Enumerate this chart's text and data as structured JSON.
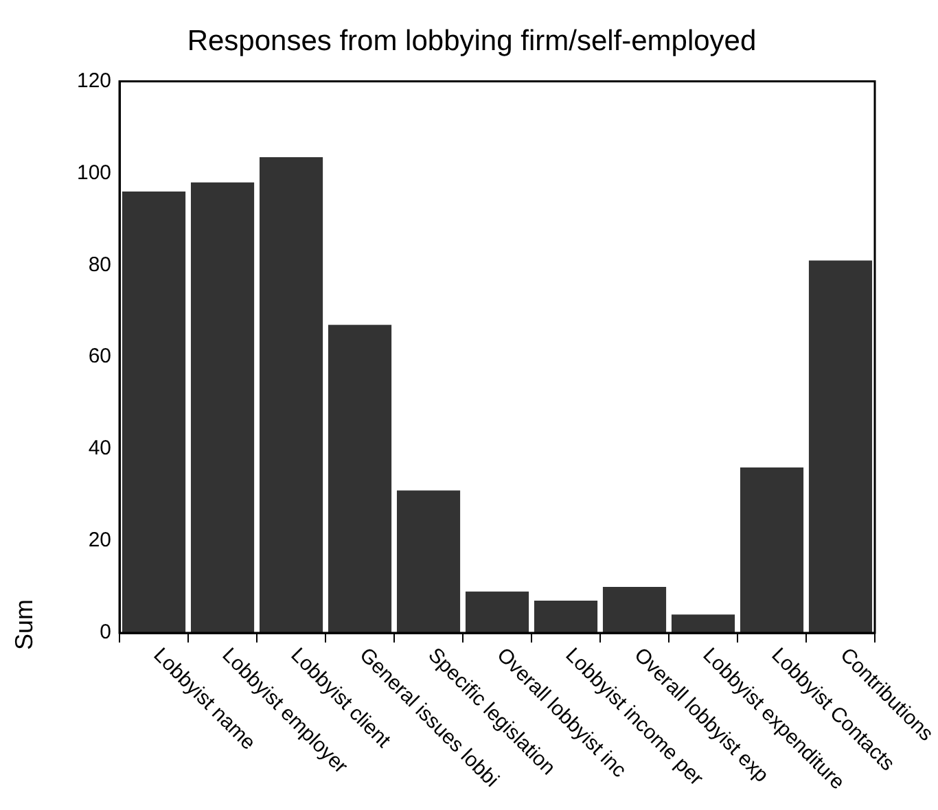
{
  "chart_data": {
    "type": "bar",
    "title": "Responses from lobbying firm/self-employed",
    "ylabel": "Sum",
    "categories": [
      "Lobbyist name",
      "Lobbyist employer",
      "Lobbyist client",
      "General issues lobbi",
      "Specific legislation",
      "Overall lobbyist inc",
      "Lobbyist income per",
      "Overall lobbyist exp",
      "Lobbyist expenditure",
      "Lobbyist Contacts",
      "Contributions"
    ],
    "values": [
      96,
      98,
      103.5,
      67,
      31,
      9,
      7,
      10,
      4,
      36,
      81
    ],
    "color": "#333333",
    "ylim": [
      0,
      120
    ],
    "yticks": [
      0,
      20,
      40,
      60,
      80,
      100,
      120
    ],
    "grid": false,
    "legend": false
  }
}
